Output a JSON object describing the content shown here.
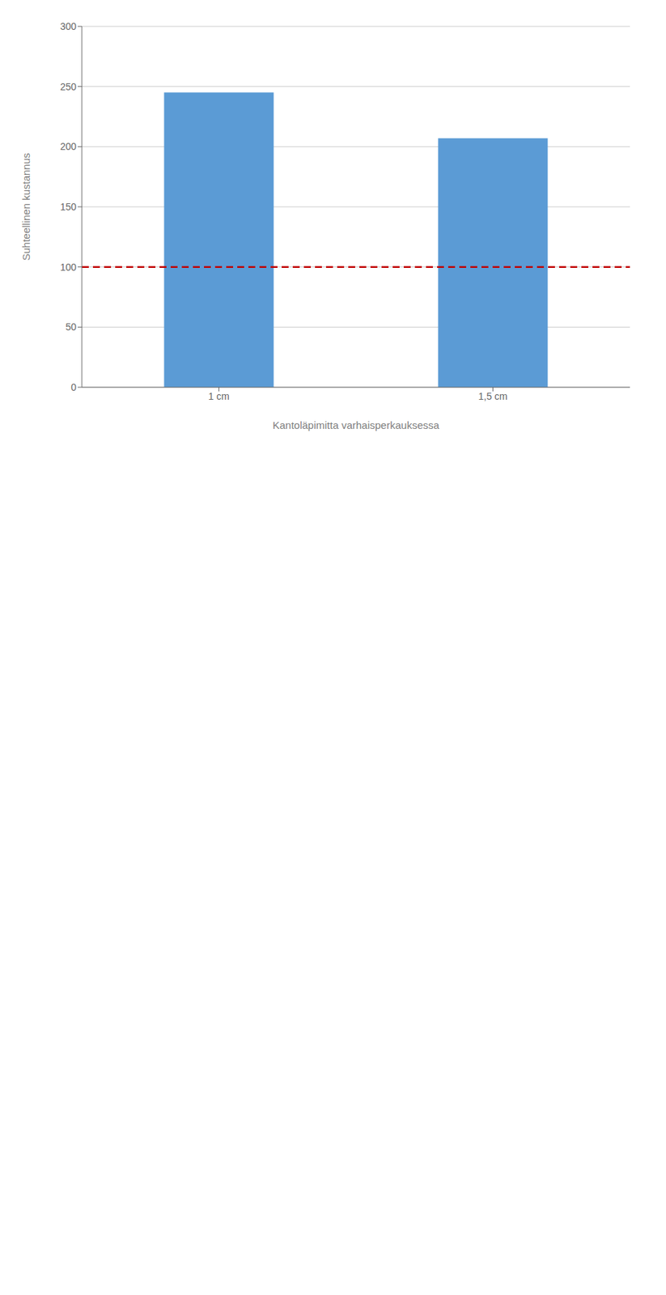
{
  "chart_data": {
    "type": "bar",
    "categories": [
      "1 cm",
      "1,5 cm"
    ],
    "values": [
      245,
      207
    ],
    "color": "#5B9BD5",
    "ylabel": "Suhteellinen kustannus",
    "xlabel": "Kantoläpimitta varhaisperkauksessa",
    "ylim": [
      0,
      300
    ],
    "yticks": [
      0,
      50,
      100,
      150,
      200,
      250,
      300
    ],
    "grid": true,
    "reference_line": {
      "value": 100,
      "color": "#C00000",
      "line_style": "dashed"
    }
  }
}
